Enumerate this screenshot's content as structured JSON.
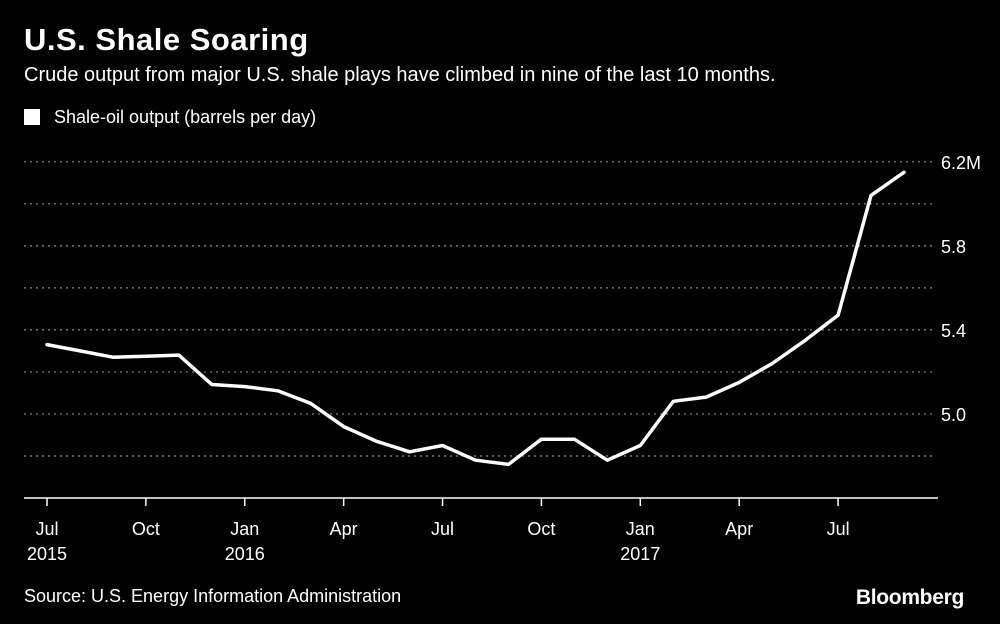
{
  "header": {
    "title": "U.S. Shale Soaring",
    "subtitle": "Crude output from major U.S. shale plays have climbed in nine of the last 10 months."
  },
  "legend": {
    "label": "Shale-oil output (barrels per day)"
  },
  "footer": {
    "source": "Source: U.S. Energy Information Administration",
    "brand": "Bloomberg"
  },
  "colors": {
    "background": "#000000",
    "line": "#ffffff",
    "grid": "#8a8a8a",
    "text": "#ffffff"
  },
  "chart_data": {
    "type": "line",
    "title": "U.S. Shale Soaring",
    "xlabel": "",
    "ylabel": "",
    "grid": true,
    "legend_position": "top-left",
    "ylim": [
      4.6,
      6.28
    ],
    "y_ticks": [
      {
        "value": 4.8,
        "label": ""
      },
      {
        "value": 5.0,
        "label": "5.0"
      },
      {
        "value": 5.2,
        "label": ""
      },
      {
        "value": 5.4,
        "label": "5.4"
      },
      {
        "value": 5.6,
        "label": ""
      },
      {
        "value": 5.8,
        "label": "5.8"
      },
      {
        "value": 6.0,
        "label": ""
      },
      {
        "value": 6.2,
        "label": "6.2M"
      }
    ],
    "x_ticks": [
      {
        "index": 0,
        "label": "Jul",
        "year": "2015"
      },
      {
        "index": 3,
        "label": "Oct",
        "year": ""
      },
      {
        "index": 6,
        "label": "Jan",
        "year": "2016"
      },
      {
        "index": 9,
        "label": "Apr",
        "year": ""
      },
      {
        "index": 12,
        "label": "Jul",
        "year": ""
      },
      {
        "index": 15,
        "label": "Oct",
        "year": ""
      },
      {
        "index": 18,
        "label": "Jan",
        "year": "2017"
      },
      {
        "index": 21,
        "label": "Apr",
        "year": ""
      },
      {
        "index": 24,
        "label": "Jul",
        "year": ""
      }
    ],
    "x_domain": [
      0,
      26
    ],
    "series": [
      {
        "name": "Shale-oil output (barrels per day)",
        "x": [
          0,
          1,
          2,
          3,
          4,
          5,
          6,
          7,
          8,
          9,
          10,
          11,
          12,
          13,
          14,
          15,
          16,
          17,
          18,
          19,
          20,
          21,
          22,
          23,
          24,
          25,
          26
        ],
        "values": [
          5.33,
          5.3,
          5.27,
          5.275,
          5.28,
          5.14,
          5.13,
          5.11,
          5.05,
          4.94,
          4.87,
          4.82,
          4.85,
          4.78,
          4.76,
          4.88,
          4.88,
          4.78,
          4.85,
          5.06,
          5.08,
          5.15,
          5.24,
          5.35,
          5.47,
          6.04,
          6.15
        ]
      }
    ]
  }
}
